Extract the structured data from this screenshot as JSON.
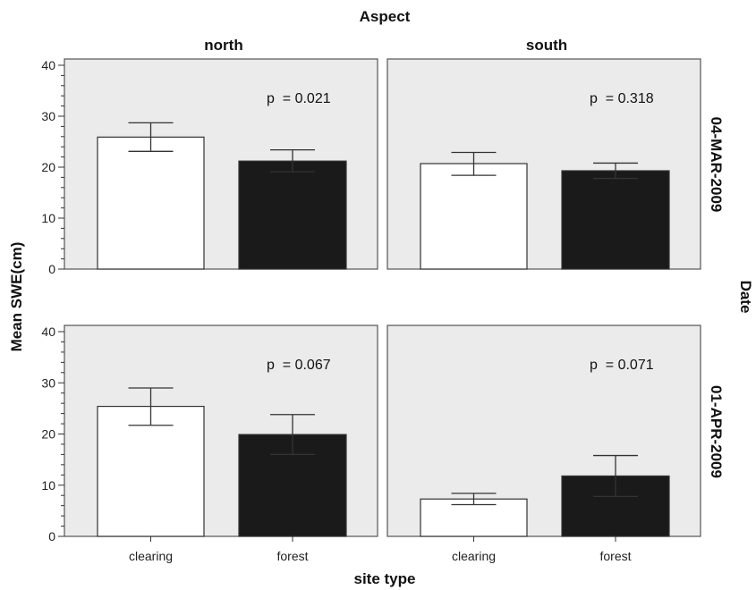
{
  "chart_data": {
    "type": "bar",
    "title": "Aspect",
    "row_title": "Date",
    "xlabel": "site type",
    "ylabel": "Mean SWE(cm)",
    "ylim": [
      0,
      40
    ],
    "y_ticks": [
      0,
      10,
      20,
      30,
      40
    ],
    "categories": [
      "clearing",
      "forest"
    ],
    "bar_colors": {
      "clearing": "#ffffff",
      "forest": "#1a1a1a"
    },
    "panel_background": "#ebebeb",
    "columns": [
      "north",
      "south"
    ],
    "rows": [
      "04-MAR-2009",
      "01-APR-2009"
    ],
    "panels": [
      {
        "row": "04-MAR-2009",
        "column": "north",
        "p_label": "p  = 0.021",
        "values": [
          25.9,
          21.2
        ],
        "error_bars": [
          {
            "low": 23.1,
            "high": 28.7
          },
          {
            "low": 19.1,
            "high": 23.4
          }
        ]
      },
      {
        "row": "04-MAR-2009",
        "column": "south",
        "p_label": "p  = 0.318",
        "values": [
          20.7,
          19.3
        ],
        "error_bars": [
          {
            "low": 18.4,
            "high": 22.9
          },
          {
            "low": 17.8,
            "high": 20.8
          }
        ]
      },
      {
        "row": "01-APR-2009",
        "column": "north",
        "p_label": "p  = 0.067",
        "values": [
          25.4,
          19.9
        ],
        "error_bars": [
          {
            "low": 21.7,
            "high": 29.0
          },
          {
            "low": 16.0,
            "high": 23.8
          }
        ]
      },
      {
        "row": "01-APR-2009",
        "column": "south",
        "p_label": "p  = 0.071",
        "values": [
          7.3,
          11.8
        ],
        "error_bars": [
          {
            "low": 6.2,
            "high": 8.4
          },
          {
            "low": 7.8,
            "high": 15.8
          }
        ]
      }
    ]
  }
}
